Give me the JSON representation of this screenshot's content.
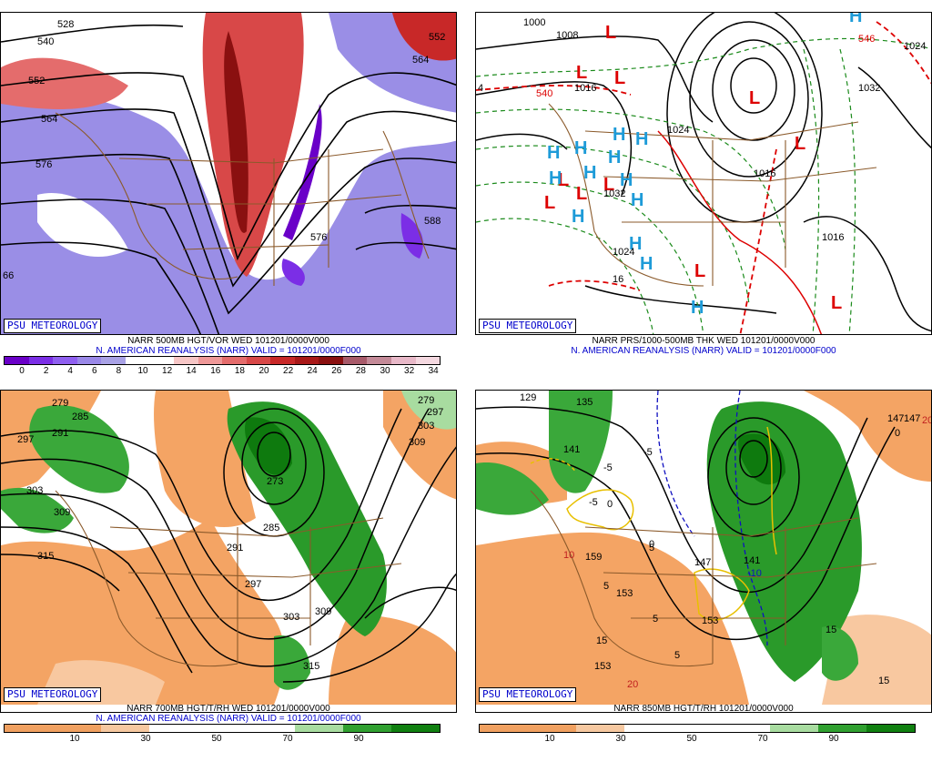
{
  "panels": [
    {
      "badge": "PSU METEOROLOGY",
      "caption1": "NARR 500MB HGT/VOR WED 101201/0000V000",
      "caption2": "N. AMERICAN REANALYSIS (NARR) VALID = 101201/0000F000",
      "scale_colors": [
        "#6a00c8",
        "#7b2ee6",
        "#8f5ff0",
        "#9a88e8",
        "#a9a2e6",
        "#ffffff",
        "#ffffff",
        "#f6c6c6",
        "#ee9898",
        "#e46c6c",
        "#d84848",
        "#c82828",
        "#a81818",
        "#8a1010",
        "#a85a6a",
        "#c48a98",
        "#e8b8c8",
        "#f4d8e0"
      ],
      "scale_ticks": [
        "0",
        "2",
        "4",
        "6",
        "8",
        "10",
        "12",
        "14",
        "16",
        "18",
        "20",
        "22",
        "24",
        "26",
        "28",
        "30",
        "32",
        "34"
      ],
      "contour_labels": [
        "528",
        "540",
        "552",
        "564",
        "576",
        "588",
        "576",
        "552",
        "564",
        "66"
      ]
    },
    {
      "badge": "PSU METEOROLOGY",
      "caption1": "NARR PRS/1000-500MB THK WED 101201/0000V000",
      "caption2": "N. AMERICAN REANALYSIS (NARR) VALID = 101201/0000F000",
      "contour_labels": [
        "1000",
        "1008",
        "1016",
        "1024",
        "1032",
        "1016",
        "1024",
        "1016",
        "1032",
        "1024",
        "540",
        "546",
        "4",
        "16"
      ]
    },
    {
      "badge": "PSU METEOROLOGY",
      "caption1": "NARR 700MB HGT/T/RH WED 101201/0000V000",
      "caption2": "N. AMERICAN REANALYSIS (NARR) VALID = 101201/0000F000",
      "scale_colors": [
        "#f0a060",
        "#f0a060",
        "#f6c8a0",
        "#ffffff",
        "#ffffff",
        "#ffffff",
        "#a8dca0",
        "#30a030",
        "#108010"
      ],
      "scale_ticks": [
        "10",
        "30",
        "50",
        "70",
        "90"
      ],
      "contour_labels": [
        "279",
        "285",
        "291",
        "297",
        "303",
        "309",
        "315",
        "291",
        "297",
        "303",
        "309",
        "315",
        "273",
        "285",
        "279",
        "303",
        "297",
        "309"
      ]
    },
    {
      "badge": "PSU METEOROLOGY",
      "caption1": "NARR 850MB HGT/T/RH 101201/0000V000",
      "scale_colors": [
        "#f0a060",
        "#f0a060",
        "#f6c8a0",
        "#ffffff",
        "#ffffff",
        "#ffffff",
        "#a8dca0",
        "#30a030",
        "#108010"
      ],
      "scale_ticks": [
        "10",
        "30",
        "50",
        "70",
        "90"
      ],
      "contour_labels": [
        "129",
        "135",
        "141",
        "147",
        "153",
        "159",
        "147",
        "141",
        "153",
        "153",
        "-5",
        "-5",
        "-5",
        "-10",
        "0",
        "0",
        "0",
        "5",
        "5",
        "5",
        "5",
        "10",
        "15",
        "15",
        "15",
        "20",
        "20",
        "147"
      ]
    }
  ],
  "symbols": {
    "low": "L",
    "high": "H"
  }
}
